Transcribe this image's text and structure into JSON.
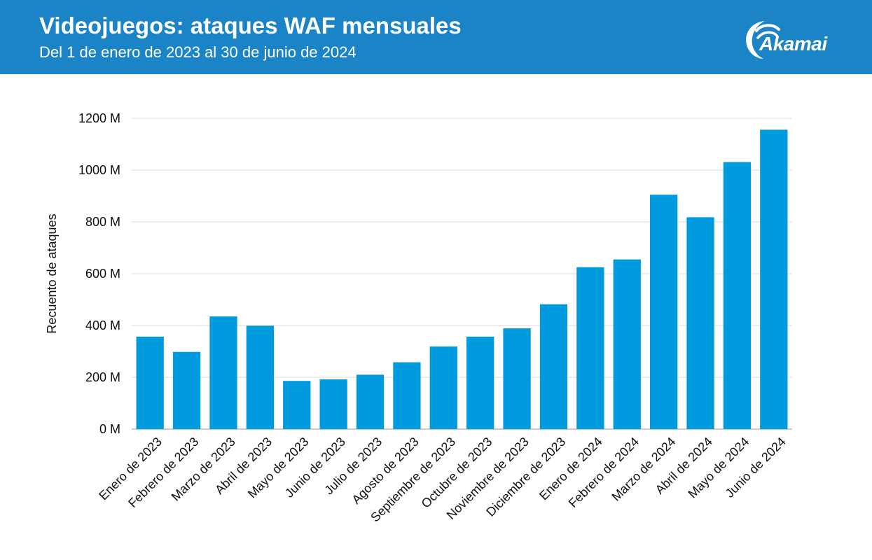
{
  "header": {
    "title": "Videojuegos: ataques WAF mensuales",
    "subtitle": "Del 1 de enero de 2023 al 30 de junio de 2024",
    "logo_text": "Akamai",
    "background": "#1b84c7"
  },
  "chart_data": {
    "type": "bar",
    "title": "Videojuegos: ataques WAF mensuales",
    "subtitle": "Del 1 de enero de 2023 al 30 de junio de 2024",
    "xlabel": "",
    "ylabel": "Recuento de ataques",
    "ylim": [
      0,
      1200
    ],
    "yticks": [
      0,
      200,
      400,
      600,
      800,
      1000,
      1200
    ],
    "ytick_labels": [
      "0 M",
      "200 M",
      "400 M",
      "600 M",
      "800 M",
      "1000 M",
      "1200 M"
    ],
    "unit": "M",
    "grid": true,
    "bar_color": "#009bde",
    "categories": [
      "Enero de 2023",
      "Febrero de 2023",
      "Marzo de 2023",
      "Abril de 2023",
      "Mayo de 2023",
      "Junio de 2023",
      "Julio de 2023",
      "Agosto de 2023",
      "Septiembre de 2023",
      "Octubre de 2023",
      "Noviembre de 2023",
      "Diciembre de 2023",
      "Enero de 2024",
      "Febrero de 2024",
      "Marzo de 2024",
      "Abril de 2024",
      "Mayo de 2024",
      "Junio de 2024"
    ],
    "values": [
      357,
      298,
      435,
      399,
      186,
      192,
      210,
      258,
      319,
      357,
      389,
      482,
      625,
      655,
      905,
      818,
      1031,
      1156
    ]
  }
}
